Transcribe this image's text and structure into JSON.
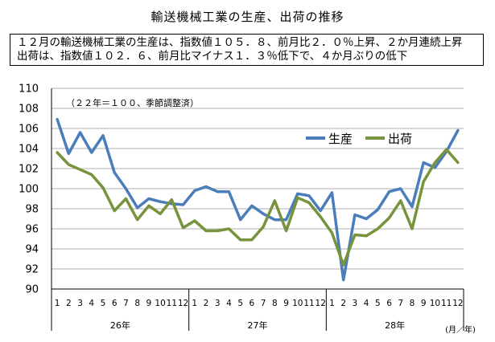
{
  "title": "輸送機械工業の生産、出荷の推移",
  "summary": {
    "line1": "１２月の輸送機械工業の生産は、指数値１０５．８、前月比２．０％上昇、２か月連続上昇",
    "line2": "出荷は、指数値１０２．６、前月比マイナス１．３％低下で、４か月ぶりの低下"
  },
  "chart_data": {
    "type": "line",
    "note": "（２２年＝１００、季節調整済）",
    "categories": [
      "1",
      "2",
      "3",
      "4",
      "5",
      "6",
      "7",
      "8",
      "9",
      "10",
      "11",
      "12",
      "1",
      "2",
      "3",
      "4",
      "5",
      "6",
      "7",
      "8",
      "9",
      "10",
      "11",
      "12",
      "1",
      "2",
      "3",
      "4",
      "5",
      "6",
      "7",
      "8",
      "9",
      "10",
      "11",
      "12"
    ],
    "year_groups": [
      {
        "label": "26年",
        "count": 12
      },
      {
        "label": "27年",
        "count": 12
      },
      {
        "label": "28年",
        "count": 12
      }
    ],
    "x_unit": "(月／年)",
    "ylim": [
      90,
      110
    ],
    "yticks": [
      90,
      92,
      94,
      96,
      98,
      100,
      102,
      104,
      106,
      108,
      110
    ],
    "grid": "horizontal",
    "legend_position": "top-right",
    "series": [
      {
        "name": "生産",
        "color": "#4a7ebb",
        "values": [
          106.9,
          103.5,
          105.6,
          103.6,
          105.3,
          101.6,
          100.0,
          98.1,
          99.0,
          98.7,
          98.5,
          98.4,
          99.8,
          100.2,
          99.7,
          99.7,
          96.9,
          98.3,
          97.5,
          96.9,
          96.9,
          99.5,
          99.3,
          97.8,
          99.6,
          90.9,
          97.4,
          97.0,
          97.9,
          99.7,
          100.0,
          98.2,
          102.6,
          102.1,
          103.7,
          105.8
        ]
      },
      {
        "name": "出荷",
        "color": "#77933c",
        "values": [
          103.6,
          102.4,
          101.9,
          101.4,
          100.1,
          97.8,
          99.0,
          96.9,
          98.3,
          97.5,
          98.9,
          96.1,
          96.8,
          95.8,
          95.8,
          96.0,
          94.9,
          94.9,
          96.2,
          98.8,
          95.8,
          99.1,
          98.6,
          97.2,
          95.6,
          92.4,
          95.4,
          95.3,
          96.0,
          97.1,
          98.8,
          96.0,
          100.7,
          102.6,
          103.9,
          102.6
        ]
      }
    ]
  }
}
